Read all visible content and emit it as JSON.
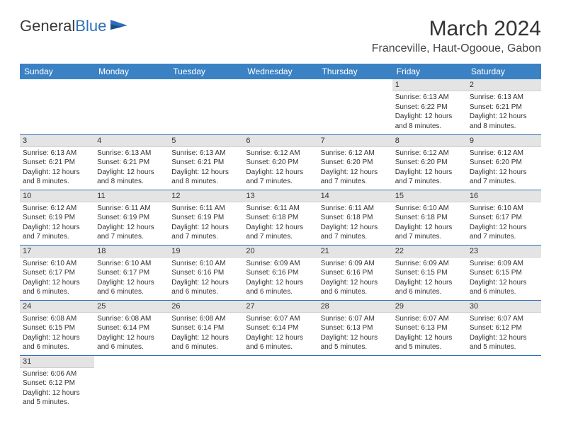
{
  "logo": {
    "text1": "General",
    "text2": "Blue"
  },
  "title": "March 2024",
  "location": "Franceville, Haut-Ogooue, Gabon",
  "colors": {
    "header_bg": "#3b82c4",
    "header_fg": "#ffffff",
    "daynum_bg": "#e4e4e4",
    "row_border": "#2d6fb8",
    "logo_blue": "#2d6fb8",
    "text": "#333333"
  },
  "weekdays": [
    "Sunday",
    "Monday",
    "Tuesday",
    "Wednesday",
    "Thursday",
    "Friday",
    "Saturday"
  ],
  "weeks": [
    [
      null,
      null,
      null,
      null,
      null,
      {
        "n": "1",
        "sunrise": "6:13 AM",
        "sunset": "6:22 PM",
        "day_h": "12",
        "day_m": "8"
      },
      {
        "n": "2",
        "sunrise": "6:13 AM",
        "sunset": "6:21 PM",
        "day_h": "12",
        "day_m": "8"
      }
    ],
    [
      {
        "n": "3",
        "sunrise": "6:13 AM",
        "sunset": "6:21 PM",
        "day_h": "12",
        "day_m": "8"
      },
      {
        "n": "4",
        "sunrise": "6:13 AM",
        "sunset": "6:21 PM",
        "day_h": "12",
        "day_m": "8"
      },
      {
        "n": "5",
        "sunrise": "6:13 AM",
        "sunset": "6:21 PM",
        "day_h": "12",
        "day_m": "8"
      },
      {
        "n": "6",
        "sunrise": "6:12 AM",
        "sunset": "6:20 PM",
        "day_h": "12",
        "day_m": "7"
      },
      {
        "n": "7",
        "sunrise": "6:12 AM",
        "sunset": "6:20 PM",
        "day_h": "12",
        "day_m": "7"
      },
      {
        "n": "8",
        "sunrise": "6:12 AM",
        "sunset": "6:20 PM",
        "day_h": "12",
        "day_m": "7"
      },
      {
        "n": "9",
        "sunrise": "6:12 AM",
        "sunset": "6:20 PM",
        "day_h": "12",
        "day_m": "7"
      }
    ],
    [
      {
        "n": "10",
        "sunrise": "6:12 AM",
        "sunset": "6:19 PM",
        "day_h": "12",
        "day_m": "7"
      },
      {
        "n": "11",
        "sunrise": "6:11 AM",
        "sunset": "6:19 PM",
        "day_h": "12",
        "day_m": "7"
      },
      {
        "n": "12",
        "sunrise": "6:11 AM",
        "sunset": "6:19 PM",
        "day_h": "12",
        "day_m": "7"
      },
      {
        "n": "13",
        "sunrise": "6:11 AM",
        "sunset": "6:18 PM",
        "day_h": "12",
        "day_m": "7"
      },
      {
        "n": "14",
        "sunrise": "6:11 AM",
        "sunset": "6:18 PM",
        "day_h": "12",
        "day_m": "7"
      },
      {
        "n": "15",
        "sunrise": "6:10 AM",
        "sunset": "6:18 PM",
        "day_h": "12",
        "day_m": "7"
      },
      {
        "n": "16",
        "sunrise": "6:10 AM",
        "sunset": "6:17 PM",
        "day_h": "12",
        "day_m": "7"
      }
    ],
    [
      {
        "n": "17",
        "sunrise": "6:10 AM",
        "sunset": "6:17 PM",
        "day_h": "12",
        "day_m": "6"
      },
      {
        "n": "18",
        "sunrise": "6:10 AM",
        "sunset": "6:17 PM",
        "day_h": "12",
        "day_m": "6"
      },
      {
        "n": "19",
        "sunrise": "6:10 AM",
        "sunset": "6:16 PM",
        "day_h": "12",
        "day_m": "6"
      },
      {
        "n": "20",
        "sunrise": "6:09 AM",
        "sunset": "6:16 PM",
        "day_h": "12",
        "day_m": "6"
      },
      {
        "n": "21",
        "sunrise": "6:09 AM",
        "sunset": "6:16 PM",
        "day_h": "12",
        "day_m": "6"
      },
      {
        "n": "22",
        "sunrise": "6:09 AM",
        "sunset": "6:15 PM",
        "day_h": "12",
        "day_m": "6"
      },
      {
        "n": "23",
        "sunrise": "6:09 AM",
        "sunset": "6:15 PM",
        "day_h": "12",
        "day_m": "6"
      }
    ],
    [
      {
        "n": "24",
        "sunrise": "6:08 AM",
        "sunset": "6:15 PM",
        "day_h": "12",
        "day_m": "6"
      },
      {
        "n": "25",
        "sunrise": "6:08 AM",
        "sunset": "6:14 PM",
        "day_h": "12",
        "day_m": "6"
      },
      {
        "n": "26",
        "sunrise": "6:08 AM",
        "sunset": "6:14 PM",
        "day_h": "12",
        "day_m": "6"
      },
      {
        "n": "27",
        "sunrise": "6:07 AM",
        "sunset": "6:14 PM",
        "day_h": "12",
        "day_m": "6"
      },
      {
        "n": "28",
        "sunrise": "6:07 AM",
        "sunset": "6:13 PM",
        "day_h": "12",
        "day_m": "5"
      },
      {
        "n": "29",
        "sunrise": "6:07 AM",
        "sunset": "6:13 PM",
        "day_h": "12",
        "day_m": "5"
      },
      {
        "n": "30",
        "sunrise": "6:07 AM",
        "sunset": "6:12 PM",
        "day_h": "12",
        "day_m": "5"
      }
    ],
    [
      {
        "n": "31",
        "sunrise": "6:06 AM",
        "sunset": "6:12 PM",
        "day_h": "12",
        "day_m": "5"
      },
      null,
      null,
      null,
      null,
      null,
      null
    ]
  ],
  "labels": {
    "sunrise": "Sunrise:",
    "sunset": "Sunset:",
    "daylight": "Daylight:",
    "hours": "hours",
    "and": "and",
    "minutes": "minutes."
  }
}
